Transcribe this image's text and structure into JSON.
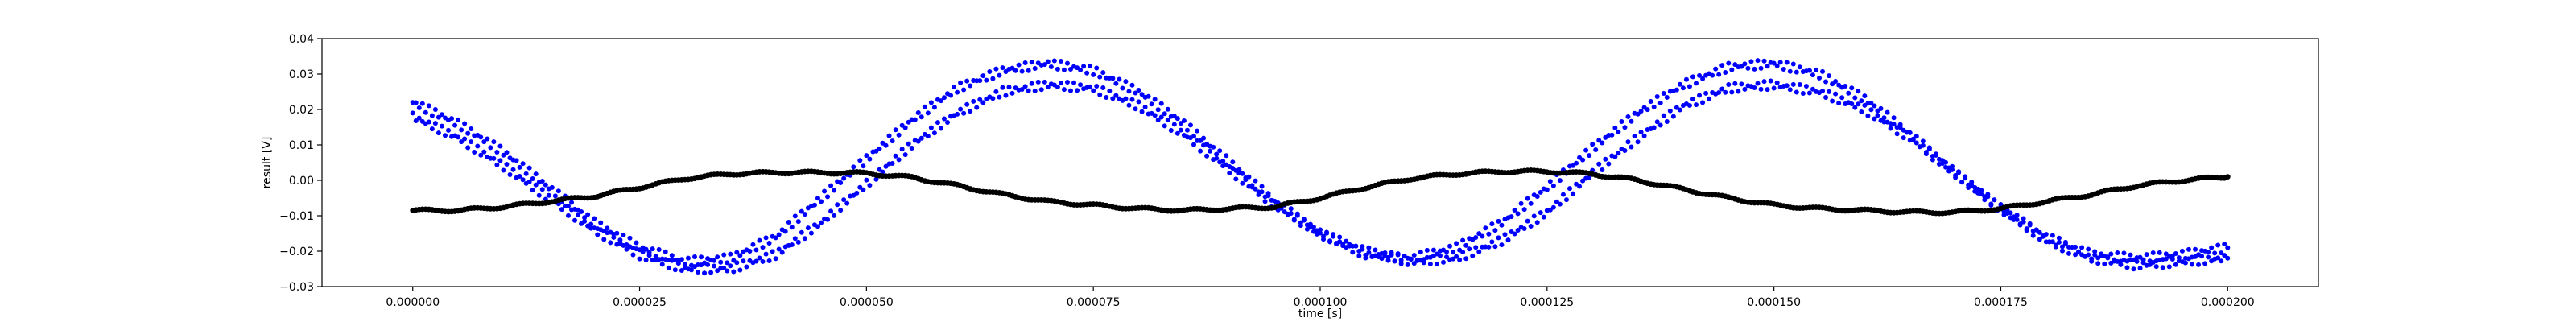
{
  "chart_data": {
    "type": "scatter",
    "title": "",
    "xlabel": "time [s]",
    "ylabel": "result [V]",
    "xlim": [
      -1e-05,
      0.00021
    ],
    "ylim": [
      -0.03,
      0.04
    ],
    "grid": false,
    "legend": "none",
    "x_ticks": [
      0,
      2.5e-05,
      5e-05,
      7.5e-05,
      0.0001,
      0.000125,
      0.00015,
      0.000175,
      0.0002
    ],
    "x_tick_labels": [
      "0.000000",
      "0.000025",
      "0.000050",
      "0.000075",
      "0.000100",
      "0.000125",
      "0.000150",
      "0.000175",
      "0.000200"
    ],
    "y_ticks": [
      -0.03,
      -0.02,
      -0.01,
      0.0,
      0.01,
      0.02,
      0.03,
      0.04
    ],
    "y_tick_labels": [
      "−0.03",
      "−0.02",
      "−0.01",
      "0.00",
      "0.01",
      "0.02",
      "0.03",
      "0.04"
    ],
    "series": [
      {
        "color": "#0000ff",
        "marker": "dot",
        "x": [
          0,
          5e-06,
          1e-05,
          1.5e-05,
          2e-05,
          2.5e-05,
          3e-05,
          3.5e-05,
          4e-05,
          4.5e-05,
          5e-05,
          5.5e-05,
          6e-05,
          6.5e-05,
          7e-05,
          7.5e-05,
          8e-05,
          8.5e-05,
          9e-05,
          9.5e-05,
          0.0001,
          0.000105,
          0.00011,
          0.000115,
          0.00012,
          0.000125,
          0.00013,
          0.000135,
          0.00014,
          0.000145,
          0.00015,
          0.000155,
          0.00016,
          0.000165,
          0.00017,
          0.000175,
          0.00018,
          0.000185,
          0.00019,
          0.000195,
          0.0002
        ],
        "y": [
          0.022,
          0.016,
          0.008,
          -0.002,
          -0.012,
          -0.019,
          -0.023,
          -0.022,
          -0.016,
          -0.005,
          0.006,
          0.017,
          0.026,
          0.031,
          0.033,
          0.031,
          0.025,
          0.016,
          0.005,
          -0.006,
          -0.015,
          -0.021,
          -0.022,
          -0.019,
          -0.012,
          -0.002,
          0.009,
          0.019,
          0.027,
          0.032,
          0.033,
          0.03,
          0.023,
          0.013,
          0.002,
          -0.008,
          -0.016,
          -0.021,
          -0.022,
          -0.021,
          -0.019
        ]
      },
      {
        "color": "#0000ff",
        "marker": "dot",
        "x": [
          0,
          5e-06,
          1e-05,
          1.5e-05,
          2e-05,
          2.5e-05,
          3e-05,
          3.5e-05,
          4e-05,
          4.5e-05,
          5e-05,
          5.5e-05,
          6e-05,
          6.5e-05,
          7e-05,
          7.5e-05,
          8e-05,
          8.5e-05,
          9e-05,
          9.5e-05,
          0.0001,
          0.000105,
          0.00011,
          0.000115,
          0.00012,
          0.000125,
          0.00013,
          0.000135,
          0.00014,
          0.000145,
          0.00015,
          0.000155,
          0.00016,
          0.000165,
          0.00017,
          0.000175,
          0.00018,
          0.000185,
          0.00019,
          0.000195,
          0.0002
        ],
        "y": [
          0.018,
          0.012,
          0.004,
          -0.005,
          -0.014,
          -0.021,
          -0.025,
          -0.025,
          -0.021,
          -0.012,
          -0.001,
          0.01,
          0.019,
          0.025,
          0.027,
          0.026,
          0.021,
          0.013,
          0.003,
          -0.007,
          -0.015,
          -0.02,
          -0.023,
          -0.022,
          -0.017,
          -0.009,
          0.002,
          0.012,
          0.021,
          0.026,
          0.027,
          0.025,
          0.02,
          0.012,
          0.002,
          -0.008,
          -0.017,
          -0.022,
          -0.024,
          -0.023,
          -0.022
        ]
      },
      {
        "color": "#000000",
        "marker": "dot",
        "x": [
          0,
          5e-06,
          1e-05,
          1.5e-05,
          2e-05,
          2.5e-05,
          3e-05,
          3.5e-05,
          4e-05,
          4.5e-05,
          5e-05,
          5.5e-05,
          6e-05,
          6.5e-05,
          7e-05,
          7.5e-05,
          8e-05,
          8.5e-05,
          9e-05,
          9.5e-05,
          0.0001,
          0.000105,
          0.00011,
          0.000115,
          0.00012,
          0.000125,
          0.00013,
          0.000135,
          0.00014,
          0.000145,
          0.00015,
          0.000155,
          0.00016,
          0.000165,
          0.00017,
          0.000175,
          0.00018,
          0.000185,
          0.00019,
          0.000195,
          0.0002
        ],
        "y": [
          -0.0085,
          -0.0085,
          -0.0075,
          -0.006,
          -0.0045,
          -0.002,
          0.0005,
          0.0018,
          0.0022,
          0.0022,
          0.002,
          0.0008,
          -0.0015,
          -0.004,
          -0.006,
          -0.007,
          -0.008,
          -0.0085,
          -0.008,
          -0.0075,
          -0.005,
          -0.002,
          0.0005,
          0.0018,
          0.0025,
          0.0025,
          0.0018,
          0.0,
          -0.0025,
          -0.005,
          -0.007,
          -0.008,
          -0.0085,
          -0.009,
          -0.009,
          -0.008,
          -0.006,
          -0.004,
          -0.0015,
          0.0,
          0.001
        ]
      }
    ]
  }
}
